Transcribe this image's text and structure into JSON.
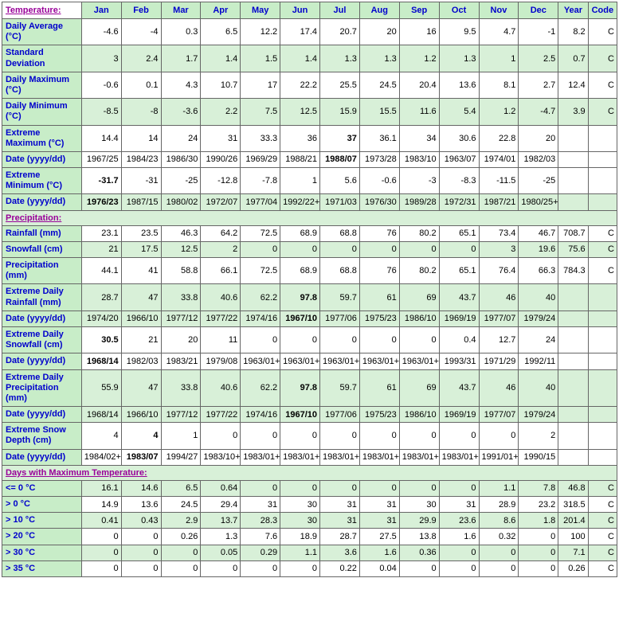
{
  "colors": {
    "header_bg": "#c8edc8",
    "shade_bg": "#d8f0d8",
    "plain_bg": "#ffffff",
    "header_text": "#0000cc",
    "section_text": "#990099",
    "border": "#666666"
  },
  "months": [
    "Jan",
    "Feb",
    "Mar",
    "Apr",
    "May",
    "Jun",
    "Jul",
    "Aug",
    "Sep",
    "Oct",
    "Nov",
    "Dec",
    "Year",
    "Code"
  ],
  "sections": [
    {
      "title": "Temperature:",
      "rows": [
        {
          "label": "Daily Average (°C)",
          "shade": false,
          "bold": [],
          "cells": [
            "-4.6",
            "-4",
            "0.3",
            "6.5",
            "12.2",
            "17.4",
            "20.7",
            "20",
            "16",
            "9.5",
            "4.7",
            "-1",
            "8.2",
            "C"
          ]
        },
        {
          "label": "Standard Deviation",
          "shade": true,
          "bold": [],
          "cells": [
            "3",
            "2.4",
            "1.7",
            "1.4",
            "1.5",
            "1.4",
            "1.3",
            "1.3",
            "1.2",
            "1.3",
            "1",
            "2.5",
            "0.7",
            "C"
          ]
        },
        {
          "label": "Daily Maximum (°C)",
          "shade": false,
          "bold": [],
          "cells": [
            "-0.6",
            "0.1",
            "4.3",
            "10.7",
            "17",
            "22.2",
            "25.5",
            "24.5",
            "20.4",
            "13.6",
            "8.1",
            "2.7",
            "12.4",
            "C"
          ]
        },
        {
          "label": "Daily Minimum (°C)",
          "shade": true,
          "bold": [],
          "cells": [
            "-8.5",
            "-8",
            "-3.6",
            "2.2",
            "7.5",
            "12.5",
            "15.9",
            "15.5",
            "11.6",
            "5.4",
            "1.2",
            "-4.7",
            "3.9",
            "C"
          ]
        },
        {
          "label": "Extreme Maximum (°C)",
          "shade": false,
          "bold": [
            6
          ],
          "cells": [
            "14.4",
            "14",
            "24",
            "31",
            "33.3",
            "36",
            "37",
            "36.1",
            "34",
            "30.6",
            "22.8",
            "20",
            "",
            ""
          ]
        },
        {
          "label": "Date (yyyy/dd)",
          "shade": false,
          "bold": [
            6
          ],
          "cells": [
            "1967/25",
            "1984/23",
            "1986/30",
            "1990/26",
            "1969/29",
            "1988/21",
            "1988/07",
            "1973/28",
            "1983/10",
            "1963/07",
            "1974/01",
            "1982/03",
            "",
            ""
          ]
        },
        {
          "label": "Extreme Minimum (°C)",
          "shade": false,
          "bold": [
            0
          ],
          "cells": [
            "-31.7",
            "-31",
            "-25",
            "-12.8",
            "-7.8",
            "1",
            "5.6",
            "-0.6",
            "-3",
            "-8.3",
            "-11.5",
            "-25",
            "",
            ""
          ]
        },
        {
          "label": "Date (yyyy/dd)",
          "shade": true,
          "bold": [
            0
          ],
          "cells": [
            "1976/23",
            "1987/15",
            "1980/02",
            "1972/07",
            "1977/04",
            "1992/22+",
            "1971/03",
            "1976/30",
            "1989/28",
            "1972/31",
            "1987/21",
            "1980/25+",
            "",
            ""
          ]
        }
      ]
    },
    {
      "title": "Precipitation:",
      "rows": [
        {
          "label": "Rainfall (mm)",
          "shade": false,
          "bold": [],
          "cells": [
            "23.1",
            "23.5",
            "46.3",
            "64.2",
            "72.5",
            "68.9",
            "68.8",
            "76",
            "80.2",
            "65.1",
            "73.4",
            "46.7",
            "708.7",
            "C"
          ]
        },
        {
          "label": "Snowfall (cm)",
          "shade": true,
          "bold": [],
          "cells": [
            "21",
            "17.5",
            "12.5",
            "2",
            "0",
            "0",
            "0",
            "0",
            "0",
            "0",
            "3",
            "19.6",
            "75.6",
            "C"
          ]
        },
        {
          "label": "Precipitation (mm)",
          "shade": false,
          "bold": [],
          "cells": [
            "44.1",
            "41",
            "58.8",
            "66.1",
            "72.5",
            "68.9",
            "68.8",
            "76",
            "80.2",
            "65.1",
            "76.4",
            "66.3",
            "784.3",
            "C"
          ]
        },
        {
          "label": "Extreme Daily Rainfall (mm)",
          "shade": true,
          "bold": [
            5
          ],
          "cells": [
            "28.7",
            "47",
            "33.8",
            "40.6",
            "62.2",
            "97.8",
            "59.7",
            "61",
            "69",
            "43.7",
            "46",
            "40",
            "",
            ""
          ]
        },
        {
          "label": "Date (yyyy/dd)",
          "shade": true,
          "bold": [
            5
          ],
          "cells": [
            "1974/20",
            "1966/10",
            "1977/12",
            "1977/22",
            "1974/16",
            "1967/10",
            "1977/06",
            "1975/23",
            "1986/10",
            "1969/19",
            "1977/07",
            "1979/24",
            "",
            ""
          ]
        },
        {
          "label": "Extreme Daily Snowfall (cm)",
          "shade": false,
          "bold": [
            0
          ],
          "cells": [
            "30.5",
            "21",
            "20",
            "11",
            "0",
            "0",
            "0",
            "0",
            "0",
            "0.4",
            "12.7",
            "24",
            "",
            ""
          ]
        },
        {
          "label": "Date (yyyy/dd)",
          "shade": false,
          "bold": [
            0
          ],
          "cells": [
            "1968/14",
            "1982/03",
            "1983/21",
            "1979/08",
            "1963/01+",
            "1963/01+",
            "1963/01+",
            "1963/01+",
            "1963/01+",
            "1993/31",
            "1971/29",
            "1992/11",
            "",
            ""
          ]
        },
        {
          "label": "Extreme Daily Precipitation (mm)",
          "shade": true,
          "bold": [
            5
          ],
          "cells": [
            "55.9",
            "47",
            "33.8",
            "40.6",
            "62.2",
            "97.8",
            "59.7",
            "61",
            "69",
            "43.7",
            "46",
            "40",
            "",
            ""
          ]
        },
        {
          "label": "Date (yyyy/dd)",
          "shade": true,
          "bold": [
            5
          ],
          "cells": [
            "1968/14",
            "1966/10",
            "1977/12",
            "1977/22",
            "1974/16",
            "1967/10",
            "1977/06",
            "1975/23",
            "1986/10",
            "1969/19",
            "1977/07",
            "1979/24",
            "",
            ""
          ]
        },
        {
          "label": "Extreme Snow Depth (cm)",
          "shade": false,
          "bold": [
            1
          ],
          "cells": [
            "4",
            "4",
            "1",
            "0",
            "0",
            "0",
            "0",
            "0",
            "0",
            "0",
            "0",
            "2",
            "",
            ""
          ]
        },
        {
          "label": "Date (yyyy/dd)",
          "shade": false,
          "bold": [
            1
          ],
          "cells": [
            "1984/02+",
            "1983/07",
            "1994/27",
            "1983/10+",
            "1983/01+",
            "1983/01+",
            "1983/01+",
            "1983/01+",
            "1983/01+",
            "1983/01+",
            "1991/01+",
            "1990/15",
            "",
            ""
          ]
        }
      ]
    },
    {
      "title": "Days with Maximum Temperature:",
      "rows": [
        {
          "label": "<= 0 °C",
          "shade": true,
          "bold": [],
          "cells": [
            "16.1",
            "14.6",
            "6.5",
            "0.64",
            "0",
            "0",
            "0",
            "0",
            "0",
            "0",
            "1.1",
            "7.8",
            "46.8",
            "C"
          ]
        },
        {
          "label": "> 0 °C",
          "shade": false,
          "bold": [],
          "cells": [
            "14.9",
            "13.6",
            "24.5",
            "29.4",
            "31",
            "30",
            "31",
            "31",
            "30",
            "31",
            "28.9",
            "23.2",
            "318.5",
            "C"
          ]
        },
        {
          "label": "> 10 °C",
          "shade": true,
          "bold": [],
          "cells": [
            "0.41",
            "0.43",
            "2.9",
            "13.7",
            "28.3",
            "30",
            "31",
            "31",
            "29.9",
            "23.6",
            "8.6",
            "1.8",
            "201.4",
            "C"
          ]
        },
        {
          "label": "> 20 °C",
          "shade": false,
          "bold": [],
          "cells": [
            "0",
            "0",
            "0.26",
            "1.3",
            "7.6",
            "18.9",
            "28.7",
            "27.5",
            "13.8",
            "1.6",
            "0.32",
            "0",
            "100",
            "C"
          ]
        },
        {
          "label": "> 30 °C",
          "shade": true,
          "bold": [],
          "cells": [
            "0",
            "0",
            "0",
            "0.05",
            "0.29",
            "1.1",
            "3.6",
            "1.6",
            "0.36",
            "0",
            "0",
            "0",
            "7.1",
            "C"
          ]
        },
        {
          "label": "> 35 °C",
          "shade": false,
          "bold": [],
          "cells": [
            "0",
            "0",
            "0",
            "0",
            "0",
            "0",
            "0.22",
            "0.04",
            "0",
            "0",
            "0",
            "0",
            "0.26",
            "C"
          ]
        }
      ]
    }
  ]
}
